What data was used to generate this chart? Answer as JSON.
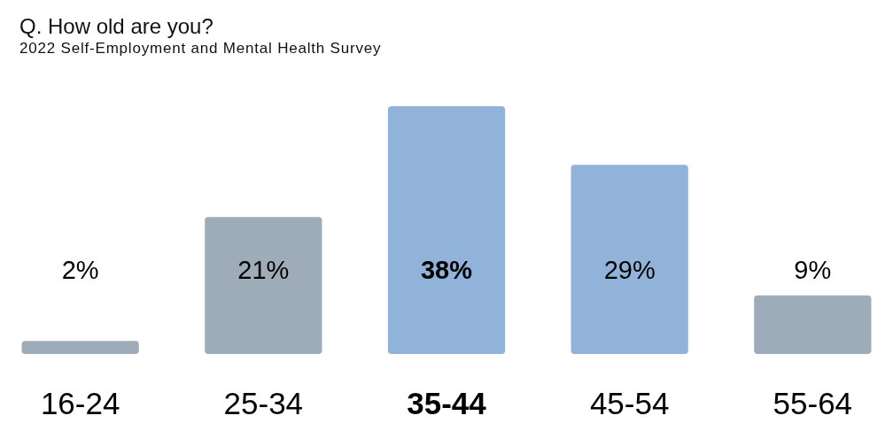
{
  "chart_data": {
    "type": "bar",
    "title": "Q. How old are you?",
    "subtitle": "2022 Self-Employment and Mental Health Survey",
    "categories": [
      "16-24",
      "25-34",
      "35-44",
      "45-54",
      "55-64"
    ],
    "values": [
      2,
      21,
      38,
      29,
      9
    ],
    "value_labels": [
      "2%",
      "21%",
      "38%",
      "29%",
      "9%"
    ],
    "colors": [
      "#9eabb8",
      "#9eabb8",
      "#91b3da",
      "#91b3da",
      "#9eabb8"
    ]
  }
}
